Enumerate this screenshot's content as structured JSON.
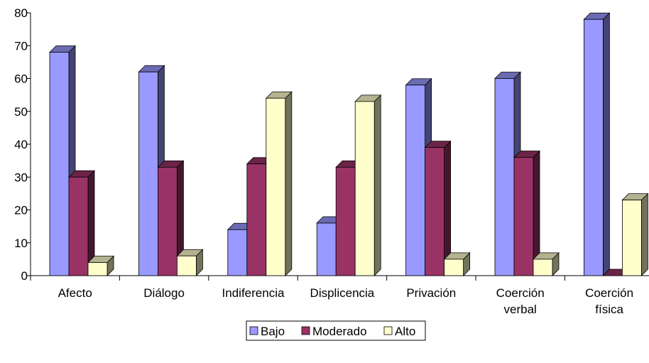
{
  "chart_data": {
    "type": "bar",
    "style": "3d-clustered-column",
    "categories": [
      [
        "Afecto"
      ],
      [
        "Diálogo"
      ],
      [
        "Indiferencia"
      ],
      [
        "Displicencia"
      ],
      [
        "Privación"
      ],
      [
        "Coerción",
        "verbal"
      ],
      [
        "Coerción",
        "física"
      ]
    ],
    "series": [
      {
        "name": "Bajo",
        "values": [
          68,
          62,
          14,
          16,
          58,
          60,
          78
        ],
        "color": "#9999ff"
      },
      {
        "name": "Moderado",
        "values": [
          30,
          33,
          34,
          33,
          39,
          36,
          0
        ],
        "color": "#993366"
      },
      {
        "name": "Alto",
        "values": [
          4,
          6,
          54,
          53,
          5,
          5,
          23
        ],
        "color": "#ffffcc"
      }
    ],
    "ylim": [
      0,
      80
    ],
    "yticks": [
      0,
      10,
      20,
      30,
      40,
      50,
      60,
      70,
      80
    ],
    "grid": false,
    "legend_position": "bottom"
  }
}
